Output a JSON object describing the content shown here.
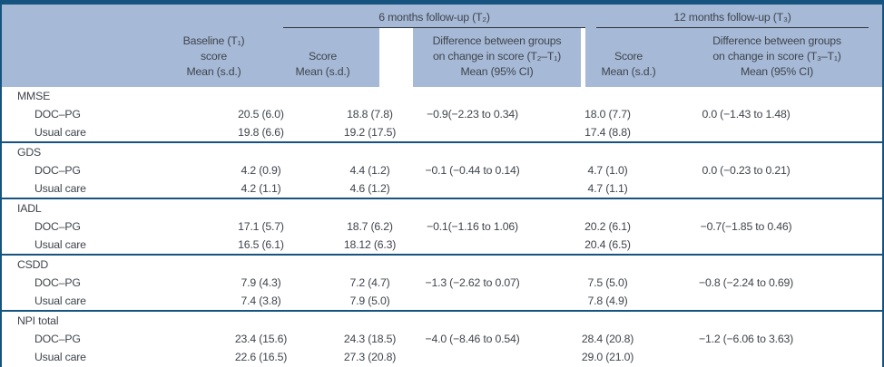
{
  "colors": {
    "header_band": "#a6b9d7",
    "rule_blue": "#16537f",
    "spanner_underline": "#2e343a",
    "text": "#3f454c"
  },
  "table": {
    "spanners": [
      {
        "label": "6 months follow-up (T₂)"
      },
      {
        "label": "12 months follow-up (T₃)"
      }
    ],
    "columns": {
      "baseline": "Baseline (T₁)\nscore\nMean (s.d.)",
      "t2_score": "Score\nMean (s.d.)",
      "t2_diff": "Difference between groups\non change in score (T₂–T₁)\nMean (95% CI)",
      "t3_score": "Score\nMean (s.d.)",
      "t3_diff": "Difference between groups\non change in score (T₃–T₁)\nMean (95% CI)"
    },
    "sections": [
      {
        "measure": "MMSE",
        "rows": [
          {
            "group": "DOC–PG",
            "baseline": "20.5 (6.0)",
            "t2_score": "18.8 (7.8)",
            "t2_diff": "−0.9(−2.23 to 0.34)",
            "t3_score": "18.0 (7.7)",
            "t3_diff": "0.0 (−1.43 to 1.48)"
          },
          {
            "group": "Usual care",
            "baseline": "19.8 (6.6)",
            "t2_score": "19.2 (17.5)",
            "t2_diff": "",
            "t3_score": "17.4 (8.8)",
            "t3_diff": ""
          }
        ]
      },
      {
        "measure": "GDS",
        "rows": [
          {
            "group": "DOC–PG",
            "baseline": "4.2 (0.9)",
            "t2_score": "4.4 (1.2)",
            "t2_diff": "−0.1 (−0.44 to 0.14)",
            "t3_score": "4.7 (1.0)",
            "t3_diff": "0.0 (−0.23 to 0.21)"
          },
          {
            "group": "Usual care",
            "baseline": "4.2 (1.1)",
            "t2_score": "4.6 (1.2)",
            "t2_diff": "",
            "t3_score": "4.7 (1.1)",
            "t3_diff": ""
          }
        ]
      },
      {
        "measure": "IADL",
        "rows": [
          {
            "group": "DOC–PG",
            "baseline": "17.1 (5.7)",
            "t2_score": "18.7 (6.2)",
            "t2_diff": "−0.1(−1.16 to 1.06)",
            "t3_score": "20.2 (6.1)",
            "t3_diff": "−0.7(−1.85 to 0.46)"
          },
          {
            "group": "Usual care",
            "baseline": "16.5 (6.1)",
            "t2_score": "18.12 (6.3)",
            "t2_diff": "",
            "t3_score": "20.4 (6.5)",
            "t3_diff": ""
          }
        ]
      },
      {
        "measure": "CSDD",
        "rows": [
          {
            "group": "DOC–PG",
            "baseline": "7.9 (4.3)",
            "t2_score": "7.2 (4.7)",
            "t2_diff": "−1.3 (−2.62 to 0.07)",
            "t3_score": "7.5 (5.0)",
            "t3_diff": "−0.8 (−2.24 to 0.69)"
          },
          {
            "group": "Usual care",
            "baseline": "7.4 (3.8)",
            "t2_score": "7.9 (5.0)",
            "t2_diff": "",
            "t3_score": "7.8 (4.9)",
            "t3_diff": ""
          }
        ]
      },
      {
        "measure": "NPI total",
        "rows": [
          {
            "group": "DOC–PG",
            "baseline": "23.4 (15.6)",
            "t2_score": "24.3 (18.5)",
            "t2_diff": "−4.0 (−8.46 to 0.54)",
            "t3_score": "28.4 (20.8)",
            "t3_diff": "−1.2 (−6.06 to 3.63)"
          },
          {
            "group": "Usual care",
            "baseline": "22.6 (16.5)",
            "t2_score": "27.3 (20.8)",
            "t2_diff": "",
            "t3_score": "29.0 (21.0)",
            "t3_diff": ""
          }
        ]
      }
    ]
  }
}
